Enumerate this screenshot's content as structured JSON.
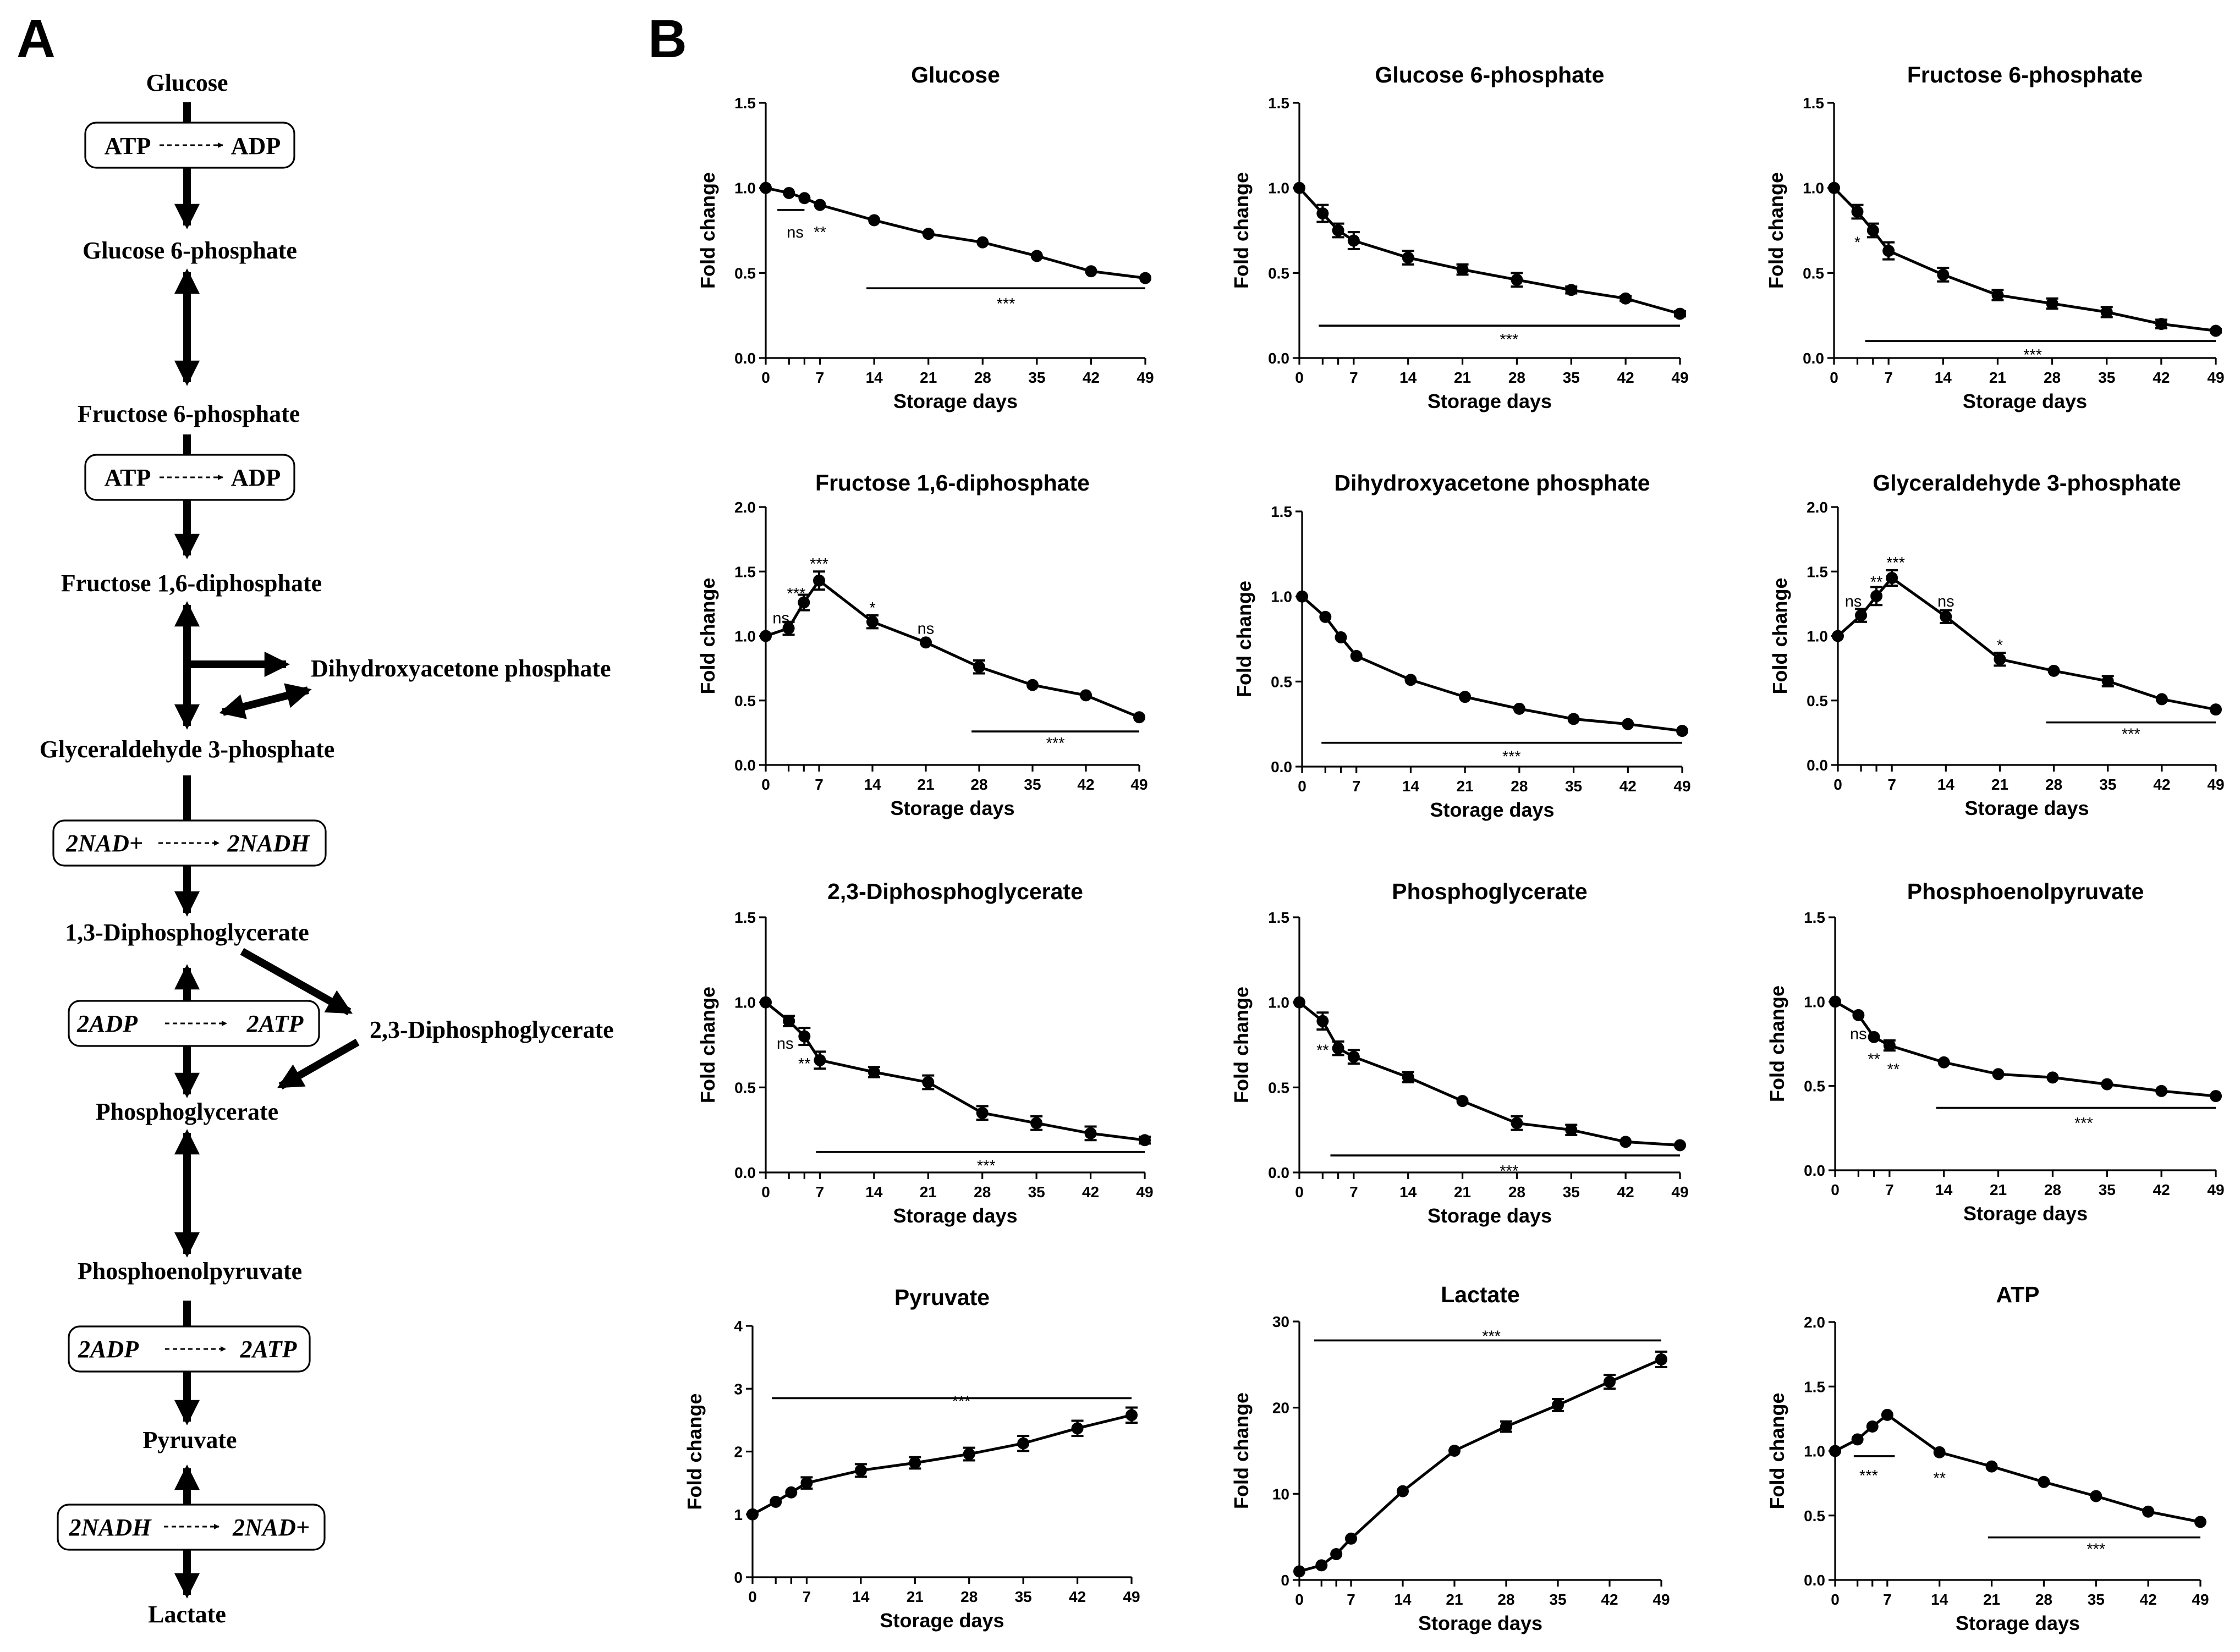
{
  "panels": {
    "a": "A",
    "b": "B"
  },
  "pathway": {
    "metabolites": [
      "Glucose",
      "Glucose 6-phosphate",
      "Fructose 6-phosphate",
      "Fructose 1,6-diphosphate",
      "Dihydroxyacetone phosphate",
      "Glyceraldehyde 3-phosphate",
      "1,3-Diphosphoglycerate",
      "2,3-Diphosphoglycerate",
      "Phosphoglycerate",
      "Phosphoenolpyruvate",
      "Pyruvate",
      "Lactate"
    ],
    "cofactors": [
      {
        "left": "ATP",
        "right": "ADP"
      },
      {
        "left": "ATP",
        "right": "ADP"
      },
      {
        "left": "2NAD+",
        "right": "2NADH"
      },
      {
        "left": "2ADP",
        "right": "2ATP"
      },
      {
        "left": "2ADP",
        "right": "2ATP"
      },
      {
        "left": "2NADH",
        "right": "2NAD+"
      }
    ]
  },
  "chart_data": [
    {
      "type": "line",
      "title": "Glucose",
      "xlabel": "Storage days",
      "ylabel": "Fold change",
      "ylim": [
        0,
        1.5
      ],
      "yticks": [
        0.0,
        0.5,
        1.0,
        1.5
      ],
      "ytick_labels": [
        "0.0",
        "0.5",
        "1.0",
        "1.5"
      ],
      "xlim": [
        0,
        49
      ],
      "xticks": [
        0,
        7,
        14,
        21,
        28,
        35,
        42,
        49
      ],
      "x": [
        0,
        3,
        5,
        7,
        14,
        21,
        28,
        35,
        42,
        49
      ],
      "y": [
        1.0,
        0.97,
        0.94,
        0.9,
        0.81,
        0.73,
        0.68,
        0.6,
        0.51,
        0.47
      ],
      "err": [
        0,
        0,
        0,
        0,
        0,
        0,
        0,
        0,
        0,
        0
      ],
      "annotations": [
        {
          "text": "ns",
          "x": 3.8,
          "y": 0.74
        },
        {
          "text": "**",
          "x": 7,
          "y": 0.74
        },
        {
          "text": "***",
          "x": 31,
          "y": 0.32
        }
      ],
      "sig_lines": [
        {
          "x1": 1.5,
          "x2": 5,
          "y": 0.87
        },
        {
          "x1": 13,
          "x2": 49,
          "y": 0.41
        }
      ]
    },
    {
      "type": "line",
      "title": "Glucose 6-phosphate",
      "xlabel": "Storage days",
      "ylabel": "Fold change",
      "ylim": [
        0,
        1.5
      ],
      "yticks": [
        0.0,
        0.5,
        1.0,
        1.5
      ],
      "ytick_labels": [
        "0.0",
        "0.5",
        "1.0",
        "1.5"
      ],
      "xlim": [
        0,
        49
      ],
      "xticks": [
        0,
        7,
        14,
        21,
        28,
        35,
        42,
        49
      ],
      "x": [
        0,
        3,
        5,
        7,
        14,
        21,
        28,
        35,
        42,
        49
      ],
      "y": [
        1.0,
        0.85,
        0.75,
        0.69,
        0.59,
        0.52,
        0.46,
        0.4,
        0.35,
        0.26
      ],
      "err": [
        0,
        0.05,
        0.04,
        0.05,
        0.04,
        0.03,
        0.04,
        0.02,
        0.015,
        0.015
      ],
      "annotations": [
        {
          "text": "***",
          "x": 27,
          "y": 0.11
        }
      ],
      "sig_lines": [
        {
          "x1": 2.5,
          "x2": 49,
          "y": 0.19
        }
      ]
    },
    {
      "type": "line",
      "title": "Fructose 6-phosphate",
      "xlabel": "Storage days",
      "ylabel": "Fold change",
      "ylim": [
        0,
        1.5
      ],
      "yticks": [
        0.0,
        0.5,
        1.0,
        1.5
      ],
      "ytick_labels": [
        "0.0",
        "0.5",
        "1.0",
        "1.5"
      ],
      "xlim": [
        0,
        49
      ],
      "xticks": [
        0,
        7,
        14,
        21,
        28,
        35,
        42,
        49
      ],
      "x": [
        0,
        3,
        5,
        7,
        14,
        21,
        28,
        35,
        42,
        49
      ],
      "y": [
        1.0,
        0.86,
        0.75,
        0.63,
        0.49,
        0.37,
        0.32,
        0.27,
        0.2,
        0.16
      ],
      "err": [
        0,
        0.04,
        0.04,
        0.05,
        0.04,
        0.03,
        0.03,
        0.03,
        0.025,
        0.01
      ],
      "annotations": [
        {
          "text": "*",
          "x": 3,
          "y": 0.68
        },
        {
          "text": "***",
          "x": 25.5,
          "y": 0.02
        }
      ],
      "sig_lines": [
        {
          "x1": 4,
          "x2": 49,
          "y": 0.1
        }
      ]
    },
    {
      "type": "line",
      "title": "Fructose 1,6-diphosphate",
      "xlabel": "Storage days",
      "ylabel": "Fold change",
      "ylim": [
        0,
        2.0
      ],
      "yticks": [
        0.0,
        0.5,
        1.0,
        1.5,
        2.0
      ],
      "ytick_labels": [
        "0.0",
        "0.5",
        "1.0",
        "1.5",
        "2.0"
      ],
      "xlim": [
        0,
        49
      ],
      "xticks": [
        0,
        7,
        14,
        21,
        28,
        35,
        42,
        49
      ],
      "x": [
        0,
        3,
        5,
        7,
        14,
        21,
        28,
        35,
        42,
        49
      ],
      "y": [
        1.0,
        1.06,
        1.26,
        1.43,
        1.11,
        0.95,
        0.76,
        0.62,
        0.54,
        0.37
      ],
      "err": [
        0,
        0.05,
        0.06,
        0.07,
        0.05,
        0,
        0.05,
        0,
        0,
        0
      ],
      "annotations": [
        {
          "text": "ns",
          "x": 2,
          "y": 1.14
        },
        {
          "text": "***",
          "x": 4,
          "y": 1.33
        },
        {
          "text": "***",
          "x": 7,
          "y": 1.56
        },
        {
          "text": "*",
          "x": 14,
          "y": 1.22
        },
        {
          "text": "ns",
          "x": 21,
          "y": 1.06
        },
        {
          "text": "***",
          "x": 38,
          "y": 0.17
        }
      ],
      "sig_lines": [
        {
          "x1": 27,
          "x2": 49,
          "y": 0.26
        }
      ]
    },
    {
      "type": "line",
      "title": "Dihydroxyacetone phosphate",
      "xlabel": "Storage days",
      "ylabel": "Fold change",
      "ylim": [
        0,
        1.5
      ],
      "yticks": [
        0.0,
        0.5,
        1.0,
        1.5
      ],
      "ytick_labels": [
        "0.0",
        "0.5",
        "1.0",
        "1.5"
      ],
      "xlim": [
        0,
        49
      ],
      "xticks": [
        0,
        7,
        14,
        21,
        28,
        35,
        42,
        49
      ],
      "x": [
        0,
        3,
        5,
        7,
        14,
        21,
        28,
        35,
        42,
        49
      ],
      "y": [
        1.0,
        0.88,
        0.76,
        0.65,
        0.51,
        0.41,
        0.34,
        0.28,
        0.25,
        0.21
      ],
      "err": [
        0,
        0,
        0,
        0,
        0,
        0,
        0,
        0,
        0,
        0
      ],
      "annotations": [
        {
          "text": "***",
          "x": 27,
          "y": 0.06
        }
      ],
      "sig_lines": [
        {
          "x1": 2.5,
          "x2": 49,
          "y": 0.14
        }
      ]
    },
    {
      "type": "line",
      "title": "Glyceraldehyde 3-phosphate",
      "xlabel": "Storage days",
      "ylabel": "Fold change",
      "ylim": [
        0,
        2.0
      ],
      "yticks": [
        0.0,
        0.5,
        1.0,
        1.5,
        2.0
      ],
      "ytick_labels": [
        "0.0",
        "0.5",
        "1.0",
        "1.5",
        "2.0"
      ],
      "xlim": [
        0,
        49
      ],
      "xticks": [
        0,
        7,
        14,
        21,
        28,
        35,
        42,
        49
      ],
      "x": [
        0,
        3,
        5,
        7,
        14,
        21,
        28,
        35,
        42,
        49
      ],
      "y": [
        1.0,
        1.16,
        1.31,
        1.45,
        1.15,
        0.82,
        0.73,
        0.65,
        0.51,
        0.43
      ],
      "err": [
        0,
        0.05,
        0.07,
        0.06,
        0.05,
        0.05,
        0,
        0.04,
        0,
        0
      ],
      "annotations": [
        {
          "text": "ns",
          "x": 2,
          "y": 1.27
        },
        {
          "text": "**",
          "x": 5,
          "y": 1.42
        },
        {
          "text": "***",
          "x": 7.5,
          "y": 1.57
        },
        {
          "text": "ns",
          "x": 14,
          "y": 1.27
        },
        {
          "text": "*",
          "x": 21,
          "y": 0.93
        },
        {
          "text": "***",
          "x": 38,
          "y": 0.24
        }
      ],
      "sig_lines": [
        {
          "x1": 27,
          "x2": 49,
          "y": 0.33
        }
      ]
    },
    {
      "type": "line",
      "title": "2,3-Diphosphoglycerate",
      "xlabel": "Storage days",
      "ylabel": "Fold change",
      "ylim": [
        0,
        1.5
      ],
      "yticks": [
        0.0,
        0.5,
        1.0,
        1.5
      ],
      "ytick_labels": [
        "0.0",
        "0.5",
        "1.0",
        "1.5"
      ],
      "xlim": [
        0,
        49
      ],
      "xticks": [
        0,
        7,
        14,
        21,
        28,
        35,
        42,
        49
      ],
      "x": [
        0,
        3,
        5,
        7,
        14,
        21,
        28,
        35,
        42,
        49
      ],
      "y": [
        1.0,
        0.89,
        0.8,
        0.66,
        0.59,
        0.53,
        0.35,
        0.29,
        0.23,
        0.19
      ],
      "err": [
        0,
        0.03,
        0.05,
        0.05,
        0.03,
        0.04,
        0.04,
        0.04,
        0.04,
        0.02
      ],
      "annotations": [
        {
          "text": "ns",
          "x": 2.5,
          "y": 0.76
        },
        {
          "text": "**",
          "x": 5,
          "y": 0.64
        },
        {
          "text": "***",
          "x": 28.5,
          "y": 0.04
        }
      ],
      "sig_lines": [
        {
          "x1": 6.5,
          "x2": 49,
          "y": 0.12
        }
      ]
    },
    {
      "type": "line",
      "title": "Phosphoglycerate",
      "xlabel": "Storage days",
      "ylabel": "Fold change",
      "ylim": [
        0,
        1.5
      ],
      "yticks": [
        0.0,
        0.5,
        1.0,
        1.5
      ],
      "ytick_labels": [
        "0.0",
        "0.5",
        "1.0",
        "1.5"
      ],
      "xlim": [
        0,
        49
      ],
      "xticks": [
        0,
        7,
        14,
        21,
        28,
        35,
        42,
        49
      ],
      "x": [
        0,
        3,
        5,
        7,
        14,
        21,
        28,
        35,
        42,
        49
      ],
      "y": [
        1.0,
        0.89,
        0.73,
        0.68,
        0.56,
        0.42,
        0.29,
        0.25,
        0.18,
        0.16
      ],
      "err": [
        0,
        0.05,
        0.04,
        0.04,
        0.03,
        0,
        0.04,
        0.03,
        0,
        0
      ],
      "annotations": [
        {
          "text": "**",
          "x": 3,
          "y": 0.72
        },
        {
          "text": "***",
          "x": 27,
          "y": 0.01
        }
      ],
      "sig_lines": [
        {
          "x1": 4,
          "x2": 49,
          "y": 0.1
        }
      ]
    },
    {
      "type": "line",
      "title": "Phosphoenolpyruvate",
      "xlabel": "Storage days",
      "ylabel": "Fold change",
      "ylim": [
        0,
        1.5
      ],
      "yticks": [
        0.0,
        0.5,
        1.0,
        1.5
      ],
      "ytick_labels": [
        "0.0",
        "0.5",
        "1.0",
        "1.5"
      ],
      "xlim": [
        0,
        49
      ],
      "xticks": [
        0,
        7,
        14,
        21,
        28,
        35,
        42,
        49
      ],
      "x": [
        0,
        3,
        5,
        7,
        14,
        21,
        28,
        35,
        42,
        49
      ],
      "y": [
        1.0,
        0.92,
        0.79,
        0.74,
        0.64,
        0.57,
        0.55,
        0.51,
        0.47,
        0.44
      ],
      "err": [
        0,
        0,
        0,
        0.03,
        0,
        0,
        0,
        0,
        0,
        0
      ],
      "annotations": [
        {
          "text": "ns",
          "x": 3,
          "y": 0.81
        },
        {
          "text": "**",
          "x": 5,
          "y": 0.66
        },
        {
          "text": "**",
          "x": 7.5,
          "y": 0.6
        },
        {
          "text": "***",
          "x": 32,
          "y": 0.28
        }
      ],
      "sig_lines": [
        {
          "x1": 13,
          "x2": 49,
          "y": 0.37
        }
      ]
    },
    {
      "type": "line",
      "title": "Pyruvate",
      "xlabel": "Storage days",
      "ylabel": "Fold change",
      "ylim": [
        0,
        4
      ],
      "yticks": [
        0,
        1,
        2,
        3,
        4
      ],
      "ytick_labels": [
        "0",
        "1",
        "2",
        "3",
        "4"
      ],
      "xlim": [
        0,
        49
      ],
      "xticks": [
        0,
        7,
        14,
        21,
        28,
        35,
        42,
        49
      ],
      "x": [
        0,
        3,
        5,
        7,
        14,
        21,
        28,
        35,
        42,
        49
      ],
      "y": [
        1.0,
        1.2,
        1.35,
        1.5,
        1.7,
        1.82,
        1.96,
        2.13,
        2.37,
        2.58
      ],
      "err": [
        0,
        0,
        0,
        0.09,
        0.1,
        0.09,
        0.1,
        0.12,
        0.12,
        0.12
      ],
      "annotations": [
        {
          "text": "***",
          "x": 27,
          "y": 2.8
        }
      ],
      "sig_lines": [
        {
          "x1": 2.5,
          "x2": 49,
          "y": 2.85
        }
      ]
    },
    {
      "type": "line",
      "title": "Lactate",
      "xlabel": "Storage days",
      "ylabel": "Fold change",
      "ylim": [
        0,
        30
      ],
      "yticks": [
        0,
        10,
        20,
        30
      ],
      "ytick_labels": [
        "0",
        "10",
        "20",
        "30"
      ],
      "xlim": [
        0,
        49
      ],
      "xticks": [
        0,
        7,
        14,
        21,
        28,
        35,
        42,
        49
      ],
      "x": [
        0,
        3,
        5,
        7,
        14,
        21,
        28,
        35,
        42,
        49
      ],
      "y": [
        1.0,
        1.7,
        3.0,
        4.8,
        10.3,
        15.0,
        17.8,
        20.3,
        23.0,
        25.6
      ],
      "err": [
        0,
        0,
        0,
        0,
        0,
        0,
        0.6,
        0.7,
        0.8,
        0.9
      ],
      "annotations": [
        {
          "text": "***",
          "x": 26,
          "y": 28.3
        }
      ],
      "sig_lines": [
        {
          "x1": 2,
          "x2": 49,
          "y": 27.8
        }
      ]
    },
    {
      "type": "line",
      "title": "ATP",
      "xlabel": "Storage days",
      "ylabel": "Fold change",
      "ylim": [
        0,
        2.0
      ],
      "yticks": [
        0.0,
        0.5,
        1.0,
        1.5,
        2.0
      ],
      "ytick_labels": [
        "0.0",
        "0.5",
        "1.0",
        "1.5",
        "2.0"
      ],
      "xlim": [
        0,
        49
      ],
      "xticks": [
        0,
        7,
        14,
        21,
        28,
        35,
        42,
        49
      ],
      "x": [
        0,
        3,
        5,
        7,
        14,
        21,
        28,
        35,
        42,
        49
      ],
      "y": [
        1.0,
        1.09,
        1.19,
        1.28,
        0.99,
        0.88,
        0.76,
        0.65,
        0.53,
        0.45
      ],
      "err": [
        0,
        0,
        0,
        0,
        0,
        0,
        0,
        0,
        0,
        0
      ],
      "annotations": [
        {
          "text": "***",
          "x": 4.5,
          "y": 0.81
        },
        {
          "text": "**",
          "x": 14,
          "y": 0.79
        },
        {
          "text": "***",
          "x": 35,
          "y": 0.24
        }
      ],
      "sig_lines": [
        {
          "x1": 2.5,
          "x2": 8,
          "y": 0.96
        },
        {
          "x1": 20.5,
          "x2": 49,
          "y": 0.33
        }
      ]
    }
  ]
}
